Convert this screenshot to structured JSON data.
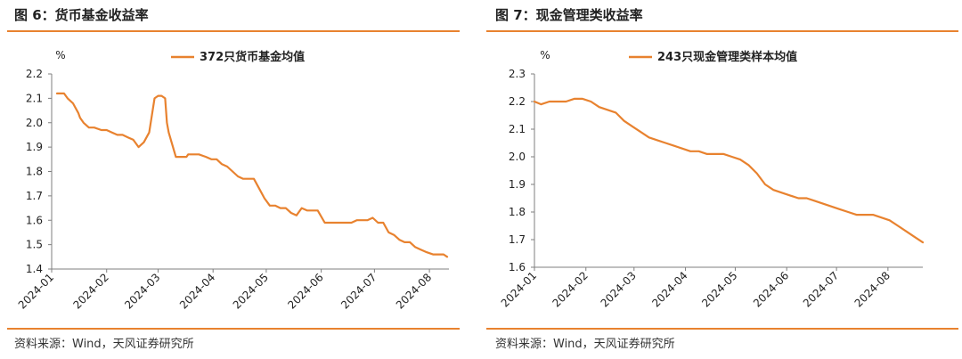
{
  "colors": {
    "accent": "#E8822F",
    "line": "#E8822F",
    "axis": "#7F7F7F",
    "text": "#222222",
    "source": "#333333"
  },
  "panels": [
    {
      "title": "图 6：货币基金收益率",
      "source": "资料来源：Wind，天风证券研究所",
      "unit_label": "%",
      "chart_data": {
        "type": "line",
        "title": "",
        "xlabel": "",
        "ylabel": "%",
        "legend": "top-center",
        "grid": false,
        "ylim": [
          1.4,
          2.2
        ],
        "y_ticks": [
          "2.2",
          "2.1",
          "2.0",
          "1.9",
          "1.8",
          "1.7",
          "1.6",
          "1.5",
          "1.4"
        ],
        "x_range": [
          "2024-01-01",
          "2024-08-12"
        ],
        "x_ticks": [
          "2024-01",
          "2024-02",
          "2024-03",
          "2024-04",
          "2024-05",
          "2024-06",
          "2024-07",
          "2024-08"
        ],
        "series": [
          {
            "name": "372只货币基金均值",
            "x": [
              "2024-01-04",
              "2024-01-08",
              "2024-01-10",
              "2024-01-13",
              "2024-01-16",
              "2024-01-17",
              "2024-01-19",
              "2024-01-22",
              "2024-01-25",
              "2024-01-29",
              "2024-02-01",
              "2024-02-04",
              "2024-02-07",
              "2024-02-10",
              "2024-02-13",
              "2024-02-16",
              "2024-02-19",
              "2024-02-22",
              "2024-02-25",
              "2024-02-28",
              "2024-03-01",
              "2024-03-03",
              "2024-03-05",
              "2024-03-06",
              "2024-03-07",
              "2024-03-11",
              "2024-03-14",
              "2024-03-17",
              "2024-03-18",
              "2024-03-20",
              "2024-03-24",
              "2024-03-28",
              "2024-03-31",
              "2024-04-03",
              "2024-04-06",
              "2024-04-09",
              "2024-04-12",
              "2024-04-15",
              "2024-04-18",
              "2024-04-21",
              "2024-04-24",
              "2024-04-27",
              "2024-04-30",
              "2024-05-03",
              "2024-05-06",
              "2024-05-09",
              "2024-05-12",
              "2024-05-15",
              "2024-05-18",
              "2024-05-21",
              "2024-05-24",
              "2024-05-27",
              "2024-05-30",
              "2024-06-03",
              "2024-06-06",
              "2024-06-09",
              "2024-06-12",
              "2024-06-15",
              "2024-06-18",
              "2024-06-21",
              "2024-06-24",
              "2024-06-27",
              "2024-06-30",
              "2024-07-03",
              "2024-07-06",
              "2024-07-09",
              "2024-07-12",
              "2024-07-15",
              "2024-07-18",
              "2024-07-21",
              "2024-07-24",
              "2024-07-27",
              "2024-07-30",
              "2024-08-03",
              "2024-08-06",
              "2024-08-09",
              "2024-08-11"
            ],
            "values": [
              2.12,
              2.12,
              2.1,
              2.08,
              2.04,
              2.02,
              2.0,
              1.98,
              1.98,
              1.97,
              1.97,
              1.96,
              1.95,
              1.95,
              1.94,
              1.93,
              1.9,
              1.92,
              1.96,
              2.1,
              2.11,
              2.11,
              2.1,
              2.0,
              1.96,
              1.86,
              1.86,
              1.86,
              1.87,
              1.87,
              1.87,
              1.86,
              1.85,
              1.85,
              1.83,
              1.82,
              1.8,
              1.78,
              1.77,
              1.77,
              1.77,
              1.73,
              1.69,
              1.66,
              1.66,
              1.65,
              1.65,
              1.63,
              1.62,
              1.65,
              1.64,
              1.64,
              1.64,
              1.59,
              1.59,
              1.59,
              1.59,
              1.59,
              1.59,
              1.6,
              1.6,
              1.6,
              1.61,
              1.59,
              1.59,
              1.55,
              1.54,
              1.52,
              1.51,
              1.51,
              1.49,
              1.48,
              1.47,
              1.46,
              1.46,
              1.46,
              1.45
            ]
          }
        ]
      }
    },
    {
      "title": "图 7：现金管理类收益率",
      "source": "资料来源：Wind，天风证券研究所",
      "unit_label": "%",
      "chart_data": {
        "type": "line",
        "title": "",
        "xlabel": "",
        "ylabel": "%",
        "legend": "top-center",
        "grid": false,
        "ylim": [
          1.6,
          2.3
        ],
        "y_ticks": [
          "2.3",
          "2.2",
          "2.1",
          "2.0",
          "1.9",
          "1.8",
          "1.7",
          "1.6"
        ],
        "x_range": [
          "2024-01-01",
          "2024-08-22"
        ],
        "x_ticks": [
          "2024-01",
          "2024-02",
          "2024-03",
          "2024-04",
          "2024-05",
          "2024-06",
          "2024-07",
          "2024-08"
        ],
        "series": [
          {
            "name": "243只现金管理类样本均值",
            "x": [
              "2024-01-01",
              "2024-01-05",
              "2024-01-10",
              "2024-01-15",
              "2024-01-20",
              "2024-01-25",
              "2024-01-30",
              "2024-02-04",
              "2024-02-09",
              "2024-02-14",
              "2024-02-19",
              "2024-02-24",
              "2024-02-29",
              "2024-03-05",
              "2024-03-10",
              "2024-03-15",
              "2024-03-20",
              "2024-03-25",
              "2024-03-30",
              "2024-04-04",
              "2024-04-09",
              "2024-04-14",
              "2024-04-19",
              "2024-04-24",
              "2024-04-29",
              "2024-05-04",
              "2024-05-09",
              "2024-05-14",
              "2024-05-19",
              "2024-05-24",
              "2024-05-29",
              "2024-06-03",
              "2024-06-08",
              "2024-06-13",
              "2024-06-18",
              "2024-06-23",
              "2024-06-28",
              "2024-07-03",
              "2024-07-08",
              "2024-07-13",
              "2024-07-18",
              "2024-07-23",
              "2024-07-28",
              "2024-08-02",
              "2024-08-07",
              "2024-08-12",
              "2024-08-17",
              "2024-08-22"
            ],
            "values": [
              2.2,
              2.19,
              2.2,
              2.2,
              2.2,
              2.21,
              2.21,
              2.2,
              2.18,
              2.17,
              2.16,
              2.13,
              2.11,
              2.09,
              2.07,
              2.06,
              2.05,
              2.04,
              2.03,
              2.02,
              2.02,
              2.01,
              2.01,
              2.01,
              2.0,
              1.99,
              1.97,
              1.94,
              1.9,
              1.88,
              1.87,
              1.86,
              1.85,
              1.85,
              1.84,
              1.83,
              1.82,
              1.81,
              1.8,
              1.79,
              1.79,
              1.79,
              1.78,
              1.77,
              1.75,
              1.73,
              1.71,
              1.69
            ]
          }
        ]
      }
    }
  ]
}
